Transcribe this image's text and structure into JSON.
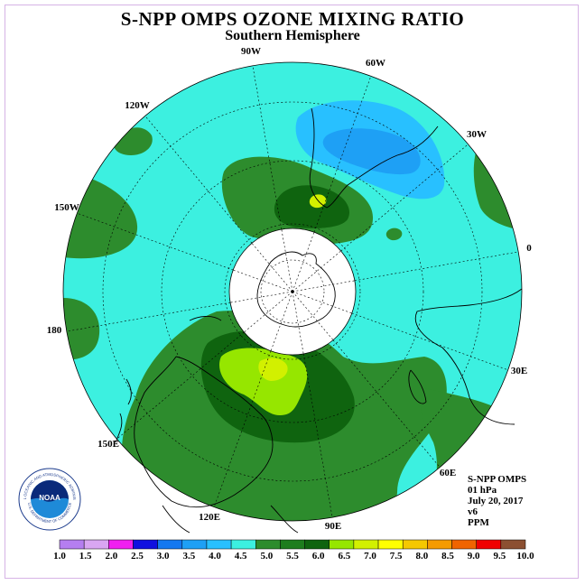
{
  "header": {
    "title": "S-NPP OMPS OZONE MIXING RATIO",
    "subtitle": "Southern Hemisphere"
  },
  "longitude_labels": [
    "90W",
    "60W",
    "30W",
    "0",
    "30E",
    "60E",
    "90E",
    "120E",
    "150E",
    "180",
    "150W",
    "120W"
  ],
  "info": {
    "instrument": "S-NPP OMPS",
    "level": "01 hPa",
    "date": "July 20, 2017",
    "version": "v6",
    "units": "PPM"
  },
  "logo": {
    "text": "NOAA",
    "ring_text": "NATIONAL OCEANIC AND ATMOSPHERIC ADMINISTRATION",
    "ring_text_bottom": "U.S. DEPARTMENT OF COMMERCE",
    "icon": "noaa-logo-icon"
  },
  "colorbar": {
    "ticks": [
      "1.0",
      "1.5",
      "2.0",
      "2.5",
      "3.0",
      "3.5",
      "4.0",
      "4.5",
      "5.0",
      "5.5",
      "6.0",
      "6.5",
      "7.0",
      "7.5",
      "8.0",
      "8.5",
      "9.0",
      "9.5",
      "10.0"
    ],
    "colors": [
      "#b57ef0",
      "#d9a6f2",
      "#f020f0",
      "#1010e0",
      "#1478f0",
      "#1ea0f5",
      "#28c0ff",
      "#3cf0e0",
      "#2d8c2d",
      "#1e7d1e",
      "#0f640f",
      "#96e600",
      "#d2f000",
      "#ffff00",
      "#f5c800",
      "#f59b00",
      "#f06400",
      "#f00000",
      "#8c5032"
    ]
  },
  "map_colors": {
    "background": "#3cf0e0",
    "green_mid": "#2d8c2d",
    "green_dark": "#0f640f",
    "lime": "#96e600",
    "yellow_green": "#d2f000",
    "blue_light": "#28c0ff",
    "blue_mid": "#1ea0f5",
    "polar_cap": "#ffffff"
  }
}
